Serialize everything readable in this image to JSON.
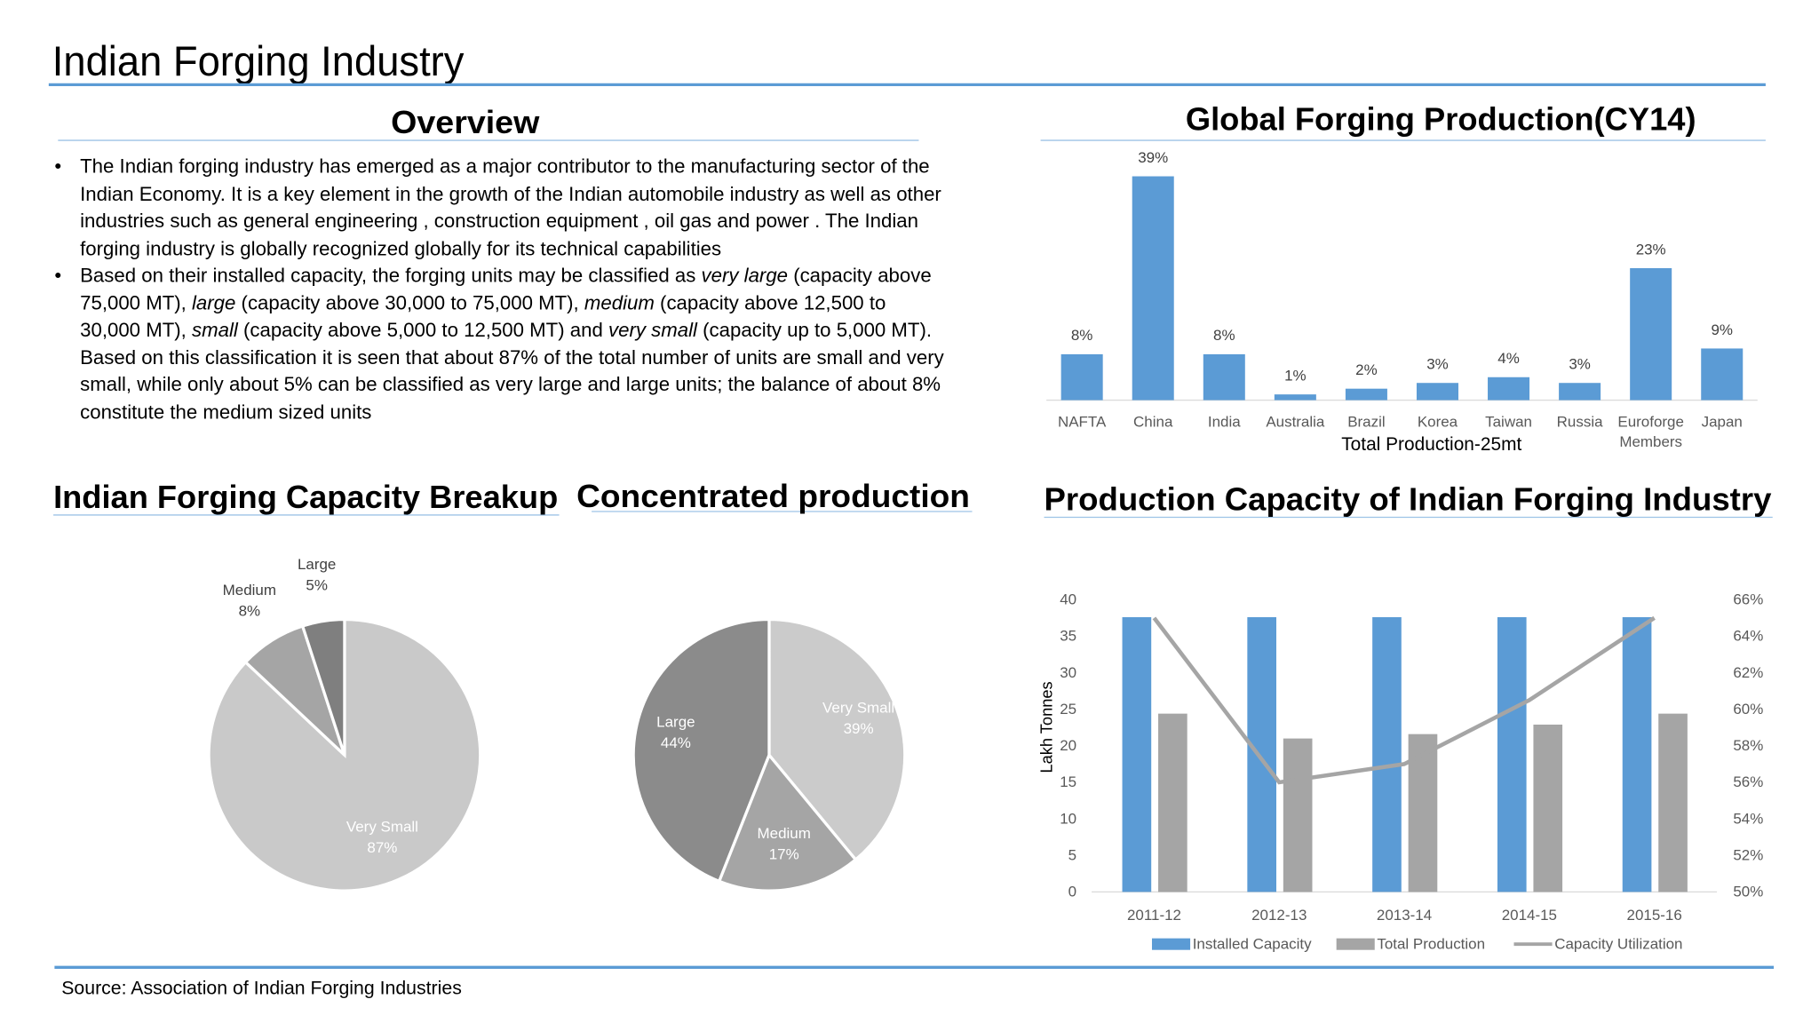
{
  "title": "Indian Forging Industry",
  "overview": {
    "heading": "Overview",
    "bullets": [
      "The Indian forging industry has emerged as a major contributor to the manufacturing sector of the Indian Economy. It is a key element in the growth of the Indian automobile industry as well as other industries such as general engineering , construction equipment , oil gas and power . The Indian forging industry is globally recognized globally for its technical capabilities",
      [
        "Based on their installed capacity, the forging units may be classified as ",
        "very large",
        " (capacity above 75,000 MT), ",
        "large",
        " (capacity above 30,000 to 75,000 MT), ",
        "medium",
        " (capacity above 12,500 to 30,000 MT), ",
        "small",
        " (capacity above 5,000 to 12,500 MT) and ",
        "very small",
        " (capacity up to 5,000 MT). Based on this classification it is seen that about 87% of the total number of units are small and very small, while only about 5% can be classified as very large and large units; the balance of about 8% constitute the medium sized units"
      ]
    ]
  },
  "chart_data": [
    {
      "type": "bar",
      "title": "Global Forging Production(CY14)",
      "x_label": "Total Production-25mt",
      "categories": [
        "NAFTA",
        "China",
        "India",
        "Australia",
        "Brazil",
        "Korea",
        "Taiwan",
        "Russia",
        "Euroforge Members",
        "Japan"
      ],
      "values": [
        8,
        39,
        8,
        1,
        2,
        3,
        4,
        3,
        23,
        9
      ],
      "value_labels": [
        "8%",
        "39%",
        "8%",
        "1%",
        "2%",
        "3%",
        "4%",
        "3%",
        "23%",
        "9%"
      ],
      "color": "#5b9bd5"
    },
    {
      "type": "pie",
      "title": "Indian Forging Capacity Breakup",
      "categories": [
        "Very Small",
        "Medium",
        "Large"
      ],
      "values": [
        87,
        8,
        5
      ],
      "value_labels": [
        "87%",
        "8%",
        "5%"
      ],
      "colors": [
        "#c9c9c9",
        "#a5a5a5",
        "#7f7f7f"
      ]
    },
    {
      "type": "pie",
      "title": "Concentrated production",
      "categories": [
        "Very Small",
        "Medium",
        "Large"
      ],
      "values": [
        39,
        17,
        44
      ],
      "value_labels": [
        "39%",
        "17%",
        "44%"
      ],
      "colors": [
        "#cbcbcb",
        "#a5a5a5",
        "#8b8b8b"
      ]
    },
    {
      "type": "combo",
      "title": "Production Capacity of Indian Forging Industry",
      "y_label": "Lakh Tonnes",
      "categories": [
        "2011-12",
        "2012-13",
        "2013-14",
        "2014-15",
        "2015-16"
      ],
      "ylim": [
        0,
        40
      ],
      "yticks": [
        0,
        5,
        10,
        15,
        20,
        25,
        30,
        35,
        40
      ],
      "y2lim": [
        50,
        66
      ],
      "y2ticks": [
        {
          "value": 50,
          "label": "50%"
        },
        {
          "value": 52,
          "label": "52%"
        },
        {
          "value": 54,
          "label": "54%"
        },
        {
          "value": 56,
          "label": "56%"
        },
        {
          "value": 58,
          "label": "58%"
        },
        {
          "value": 60,
          "label": "60%"
        },
        {
          "value": 62,
          "label": "62%"
        },
        {
          "value": 64,
          "label": "64%"
        },
        {
          "value": 66,
          "label": "66%"
        }
      ],
      "series": [
        {
          "name": "Installed Capacity",
          "type": "bar",
          "color": "#5b9bd5",
          "values": [
            37.6,
            37.6,
            37.6,
            37.6,
            37.6
          ]
        },
        {
          "name": "Total Production",
          "type": "bar",
          "color": "#a5a5a5",
          "values": [
            24.4,
            21,
            21.6,
            22.9,
            24.4
          ]
        },
        {
          "name": "Capacity Utilization",
          "type": "line",
          "axis": "y2",
          "color": "#a5a5a5",
          "values": [
            65,
            56,
            57,
            60.5,
            65
          ]
        }
      ],
      "legend": "bottom"
    }
  ],
  "source": "Source: Association of Indian Forging Industries"
}
